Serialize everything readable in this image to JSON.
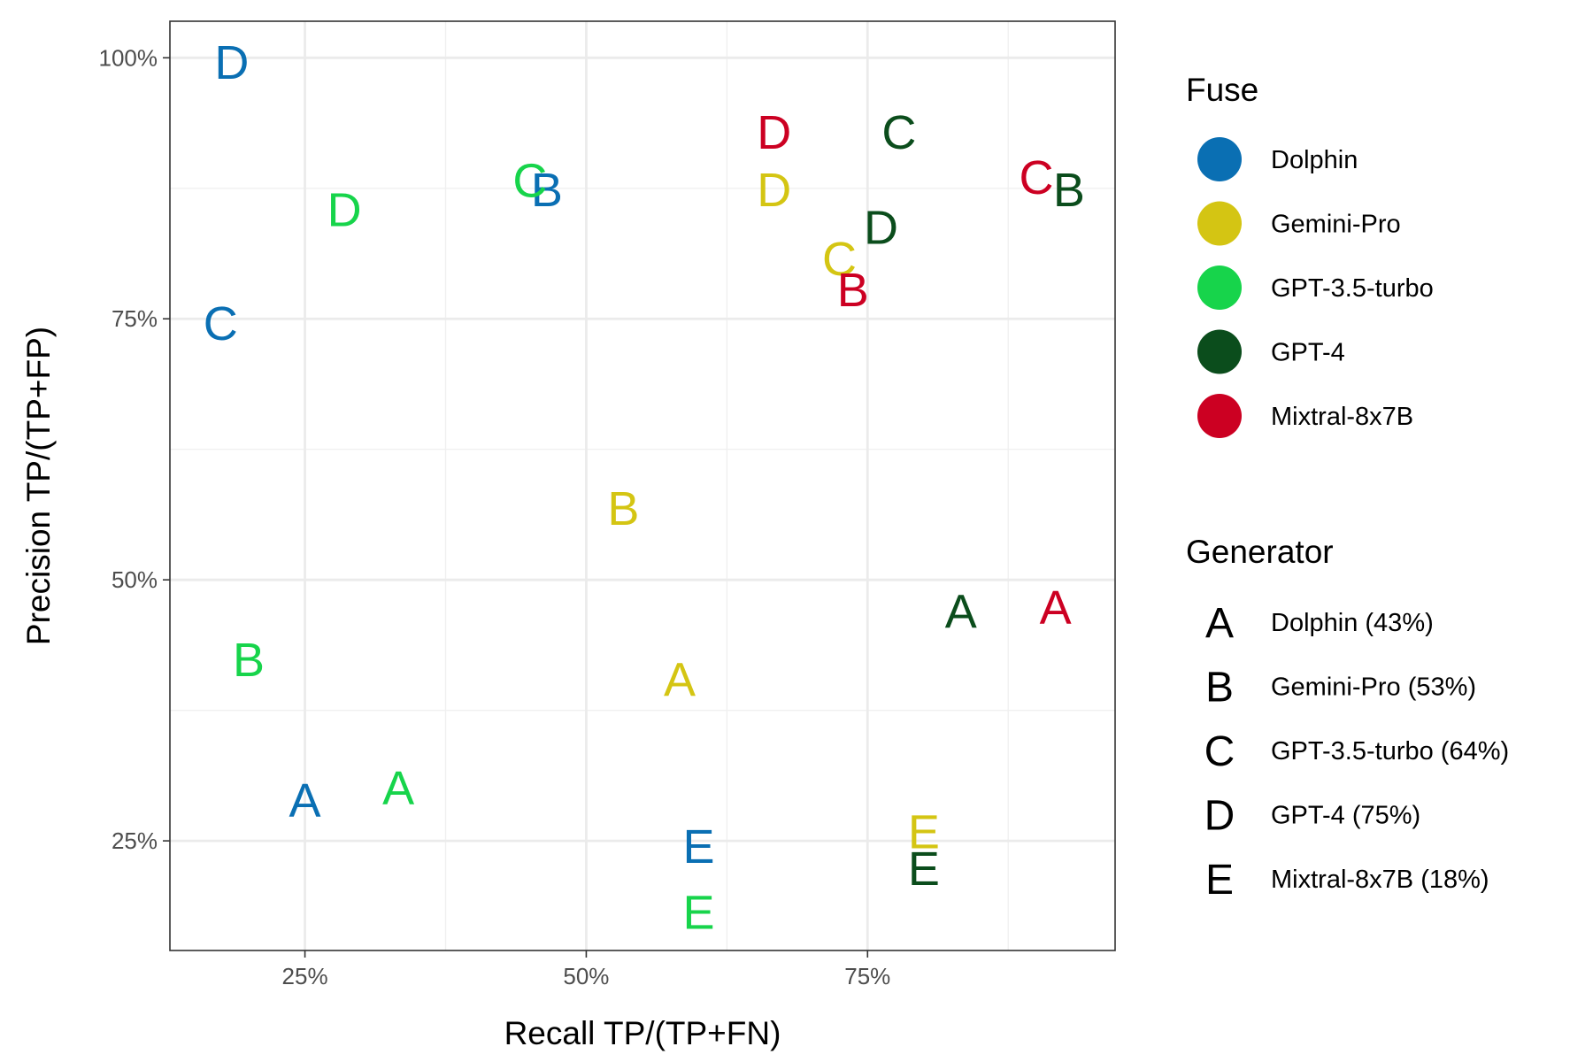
{
  "chart_data": {
    "type": "scatter",
    "title": "",
    "xlabel": "Recall TP/(TP+FN)",
    "ylabel": "Precision TP/(TP+FP)",
    "xlim": [
      0.13,
      0.97
    ],
    "ylim": [
      0.145,
      1.035
    ],
    "x_ticks": [
      {
        "value": 0.25,
        "label": "25%"
      },
      {
        "value": 0.5,
        "label": "50%"
      },
      {
        "value": 0.75,
        "label": "75%"
      }
    ],
    "y_ticks": [
      {
        "value": 0.25,
        "label": "25%"
      },
      {
        "value": 0.5,
        "label": "50%"
      },
      {
        "value": 0.75,
        "label": "75%"
      },
      {
        "value": 1.0,
        "label": "100%"
      }
    ],
    "grid": true,
    "legend_position": "right",
    "color_legend": {
      "title": "Fuse",
      "entries": [
        {
          "name": "Dolphin",
          "color": "#0a6fb3"
        },
        {
          "name": "Gemini-Pro",
          "color": "#d4c513"
        },
        {
          "name": "GPT-3.5-turbo",
          "color": "#17d44b"
        },
        {
          "name": "GPT-4",
          "color": "#0b4d1c"
        },
        {
          "name": "Mixtral-8x7B",
          "color": "#cc0022"
        }
      ]
    },
    "shape_legend": {
      "title": "Generator",
      "entries": [
        {
          "symbol": "A",
          "name": "Dolphin (43%)"
        },
        {
          "symbol": "B",
          "name": "Gemini-Pro (53%)"
        },
        {
          "symbol": "C",
          "name": "GPT-3.5-turbo (64%)"
        },
        {
          "symbol": "D",
          "name": "GPT-4 (75%)"
        },
        {
          "symbol": "E",
          "name": "Mixtral-8x7B (18%)"
        }
      ]
    },
    "points": [
      {
        "fuse": "Dolphin",
        "generator": "A",
        "x": 0.25,
        "y": 0.289
      },
      {
        "fuse": "Dolphin",
        "generator": "C",
        "x": 0.175,
        "y": 0.746
      },
      {
        "fuse": "Dolphin",
        "generator": "B",
        "x": 0.465,
        "y": 0.874
      },
      {
        "fuse": "Dolphin",
        "generator": "D",
        "x": 0.185,
        "y": 0.996
      },
      {
        "fuse": "Dolphin",
        "generator": "E",
        "x": 0.6,
        "y": 0.245
      },
      {
        "fuse": "Gemini-Pro",
        "generator": "B",
        "x": 0.533,
        "y": 0.569
      },
      {
        "fuse": "Gemini-Pro",
        "generator": "A",
        "x": 0.583,
        "y": 0.405
      },
      {
        "fuse": "Gemini-Pro",
        "generator": "D",
        "x": 0.667,
        "y": 0.874
      },
      {
        "fuse": "Gemini-Pro",
        "generator": "C",
        "x": 0.725,
        "y": 0.808
      },
      {
        "fuse": "Gemini-Pro",
        "generator": "E",
        "x": 0.8,
        "y": 0.259
      },
      {
        "fuse": "GPT-3.5-turbo",
        "generator": "A",
        "x": 0.333,
        "y": 0.301
      },
      {
        "fuse": "GPT-3.5-turbo",
        "generator": "B",
        "x": 0.2,
        "y": 0.424
      },
      {
        "fuse": "GPT-3.5-turbo",
        "generator": "D",
        "x": 0.285,
        "y": 0.855
      },
      {
        "fuse": "GPT-3.5-turbo",
        "generator": "C",
        "x": 0.45,
        "y": 0.883
      },
      {
        "fuse": "GPT-3.5-turbo",
        "generator": "E",
        "x": 0.6,
        "y": 0.182
      },
      {
        "fuse": "GPT-4",
        "generator": "C",
        "x": 0.778,
        "y": 0.929
      },
      {
        "fuse": "GPT-4",
        "generator": "D",
        "x": 0.762,
        "y": 0.838
      },
      {
        "fuse": "GPT-4",
        "generator": "A",
        "x": 0.833,
        "y": 0.47
      },
      {
        "fuse": "GPT-4",
        "generator": "B",
        "x": 0.929,
        "y": 0.874
      },
      {
        "fuse": "GPT-4",
        "generator": "E",
        "x": 0.8,
        "y": 0.224
      },
      {
        "fuse": "Mixtral-8x7B",
        "generator": "D",
        "x": 0.667,
        "y": 0.929
      },
      {
        "fuse": "Mixtral-8x7B",
        "generator": "B",
        "x": 0.737,
        "y": 0.778
      },
      {
        "fuse": "Mixtral-8x7B",
        "generator": "C",
        "x": 0.9,
        "y": 0.886
      },
      {
        "fuse": "Mixtral-8x7B",
        "generator": "A",
        "x": 0.917,
        "y": 0.474
      }
    ]
  }
}
